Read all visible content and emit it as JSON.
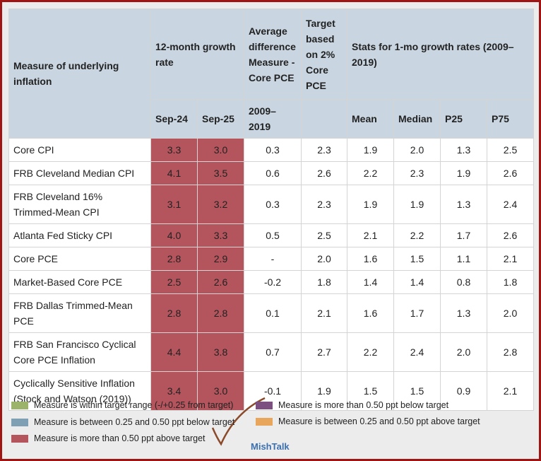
{
  "table": {
    "header": {
      "measure": "Measure of underlying inflation",
      "growth": "12-month growth rate",
      "avg_diff": "Average difference Measure - Core PCE",
      "target": "Target based on 2% Core PCE",
      "stats": "Stats for 1-mo growth rates (2009–2019)",
      "sub": [
        "Sep-24",
        "Sep-25",
        "2009–2019",
        "Mean",
        "Median",
        "P25",
        "P75"
      ]
    },
    "rows": [
      [
        "Core CPI",
        "3.3",
        "3.0",
        "0.3",
        "2.3",
        "1.9",
        "2.0",
        "1.3",
        "2.5"
      ],
      [
        "FRB Cleveland Median CPI",
        "4.1",
        "3.5",
        "0.6",
        "2.6",
        "2.2",
        "2.3",
        "1.9",
        "2.6"
      ],
      [
        "FRB Cleveland 16% Trimmed-Mean CPI",
        "3.1",
        "3.2",
        "0.3",
        "2.3",
        "1.9",
        "1.9",
        "1.3",
        "2.4"
      ],
      [
        "Atlanta Fed Sticky CPI",
        "4.0",
        "3.3",
        "0.5",
        "2.5",
        "2.1",
        "2.2",
        "1.7",
        "2.6"
      ],
      [
        "Core PCE",
        "2.8",
        "2.9",
        "-",
        "2.0",
        "1.6",
        "1.5",
        "1.1",
        "2.1"
      ],
      [
        "Market-Based Core PCE",
        "2.5",
        "2.6",
        "-0.2",
        "1.8",
        "1.4",
        "1.4",
        "0.8",
        "1.8"
      ],
      [
        "FRB Dallas Trimmed-Mean PCE",
        "2.8",
        "2.8",
        "0.1",
        "2.1",
        "1.6",
        "1.7",
        "1.3",
        "2.0"
      ],
      [
        "FRB San Francisco Cyclical Core PCE Inflation",
        "4.4",
        "3.8",
        "0.7",
        "2.7",
        "2.2",
        "2.4",
        "2.0",
        "2.8"
      ],
      [
        "Cyclically Sensitive Inflation (Stock and Watson (2019))",
        "3.4",
        "3.0",
        "-0.1",
        "1.9",
        "1.5",
        "1.5",
        "0.9",
        "2.1"
      ]
    ]
  },
  "legend": [
    {
      "label": "Measure is within target range (-/+0.25 from target)",
      "color": "#9bb36b"
    },
    {
      "label": "Measure is between 0.25 and 0.50 ppt below target",
      "color": "#7f9fb5"
    },
    {
      "label": "Measure is more than 0.50 ppt above target",
      "color": "#b4545c"
    },
    {
      "label": "Measure is more than 0.50 ppt below target",
      "color": "#7b4f7f"
    },
    {
      "label": "Measure is between 0.25 and 0.50 ppt above target",
      "color": "#e8a65c"
    }
  ],
  "watermark": "MishTalk"
}
